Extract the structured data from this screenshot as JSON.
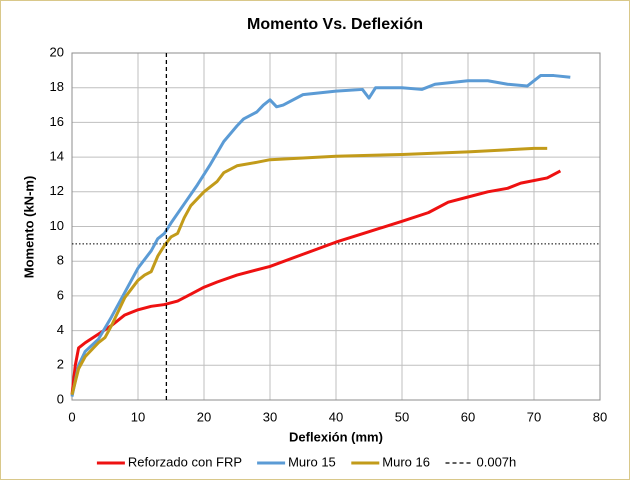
{
  "chart_data": {
    "type": "line",
    "title": "Momento Vs. Deflexión",
    "x_label": "Deflexión (mm)",
    "y_label": "Momento (kN-m)",
    "xlim": [
      0,
      80
    ],
    "xticks": [
      0,
      10,
      20,
      30,
      40,
      50,
      60,
      70,
      80
    ],
    "ylim": [
      0,
      20
    ],
    "yticks": [
      0,
      2,
      4,
      6,
      8,
      10,
      12,
      14,
      16,
      18,
      20
    ],
    "grid": true,
    "legend": "bottom",
    "hlines": [
      9
    ],
    "series": [
      {
        "name": "Reforzado con FRP",
        "color": "#ee1111",
        "style": "solid",
        "x": [
          0,
          0.5,
          1,
          2,
          4,
          6,
          8,
          10,
          12,
          14,
          16,
          18,
          20,
          22,
          25,
          30,
          35,
          40,
          45,
          50,
          54,
          57,
          60,
          63,
          66,
          68,
          72,
          74
        ],
        "values": [
          0.3,
          2.0,
          3.0,
          3.3,
          3.8,
          4.3,
          4.9,
          5.2,
          5.4,
          5.5,
          5.7,
          6.1,
          6.5,
          6.8,
          7.2,
          7.7,
          8.4,
          9.1,
          9.7,
          10.3,
          10.8,
          11.4,
          11.7,
          12.0,
          12.2,
          12.5,
          12.8,
          13.2
        ]
      },
      {
        "name": "Muro 15",
        "color": "#5b9bd5",
        "style": "solid",
        "x": [
          0,
          1,
          2,
          4,
          6,
          8,
          10,
          12,
          13,
          14,
          15,
          17,
          19,
          21,
          23,
          25,
          26,
          28,
          29,
          30,
          31,
          32,
          35,
          40,
          44,
          45,
          46,
          50,
          53,
          55,
          60,
          63,
          66,
          69,
          71,
          73,
          75.5
        ],
        "values": [
          0.2,
          2.0,
          2.8,
          3.5,
          4.8,
          6.2,
          7.6,
          8.6,
          9.3,
          9.6,
          10.2,
          11.3,
          12.4,
          13.6,
          14.9,
          15.8,
          16.2,
          16.6,
          17.0,
          17.3,
          16.9,
          17.0,
          17.6,
          17.8,
          17.9,
          17.4,
          18.0,
          18.0,
          17.9,
          18.2,
          18.4,
          18.4,
          18.2,
          18.1,
          18.7,
          18.7,
          18.6
        ]
      },
      {
        "name": "Muro 16",
        "color": "#c29b1a",
        "style": "solid",
        "x": [
          0,
          1,
          2,
          4,
          5,
          6,
          8,
          10,
          11,
          12,
          13,
          14,
          15,
          16,
          17,
          18,
          20,
          22,
          23,
          25,
          28,
          30,
          35,
          40,
          50,
          60,
          70,
          72
        ],
        "values": [
          0.3,
          1.8,
          2.5,
          3.3,
          3.6,
          4.3,
          5.9,
          6.9,
          7.2,
          7.4,
          8.3,
          8.9,
          9.4,
          9.6,
          10.5,
          11.2,
          12.0,
          12.6,
          13.1,
          13.5,
          13.7,
          13.85,
          13.95,
          14.05,
          14.15,
          14.3,
          14.5,
          14.5
        ]
      },
      {
        "name": "0.007h",
        "color": "#000000",
        "style": "dashed",
        "x": [
          14.3,
          14.3
        ],
        "values": [
          0,
          20
        ]
      }
    ]
  }
}
